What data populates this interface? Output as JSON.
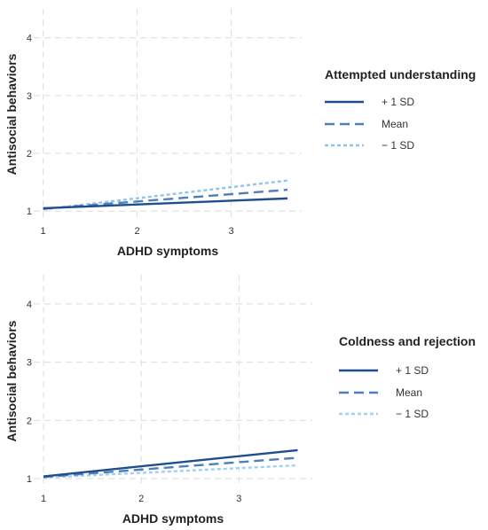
{
  "chart_data": [
    {
      "type": "line",
      "xlabel": "ADHD symptoms",
      "ylabel": "Antisocial behaviors",
      "xlim": [
        0.9,
        3.75
      ],
      "ylim": [
        0.85,
        4.5
      ],
      "xticks": [
        "1",
        "2",
        "3"
      ],
      "yticks": [
        "1",
        "2",
        "3",
        "4"
      ],
      "grid": true,
      "legend": {
        "title": "Attempted understanding",
        "placement": "right"
      },
      "series": [
        {
          "name": "+ 1 SD",
          "color": "#1f4e8c",
          "dash": "solid",
          "x": [
            1,
            3.6
          ],
          "y": [
            1.05,
            1.22
          ]
        },
        {
          "name": "Mean",
          "color": "#4f7fba",
          "dash": "long-dash",
          "x": [
            1,
            3.6
          ],
          "y": [
            1.04,
            1.37
          ]
        },
        {
          "name": "− 1 SD",
          "color": "#8ec4ee",
          "dash": "dotted",
          "x": [
            1,
            3.6
          ],
          "y": [
            1.03,
            1.53
          ]
        }
      ]
    },
    {
      "type": "line",
      "xlabel": "ADHD symptoms",
      "ylabel": "Antisocial behaviors",
      "xlim": [
        0.9,
        3.75
      ],
      "ylim": [
        0.85,
        4.5
      ],
      "xticks": [
        "1",
        "2",
        "3"
      ],
      "yticks": [
        "1",
        "2",
        "3",
        "4"
      ],
      "grid": true,
      "legend": {
        "title": "Coldness and rejection",
        "placement": "right"
      },
      "series": [
        {
          "name": "+ 1 SD",
          "color": "#1f4e8c",
          "dash": "solid",
          "x": [
            1,
            3.6
          ],
          "y": [
            1.04,
            1.49
          ]
        },
        {
          "name": "Mean",
          "color": "#4f7fba",
          "dash": "long-dash",
          "x": [
            1,
            3.6
          ],
          "y": [
            1.03,
            1.36
          ]
        },
        {
          "name": "− 1 SD",
          "color": "#9fd0f2",
          "dash": "dotted",
          "x": [
            1,
            3.6
          ],
          "y": [
            1.02,
            1.23
          ]
        }
      ]
    }
  ]
}
